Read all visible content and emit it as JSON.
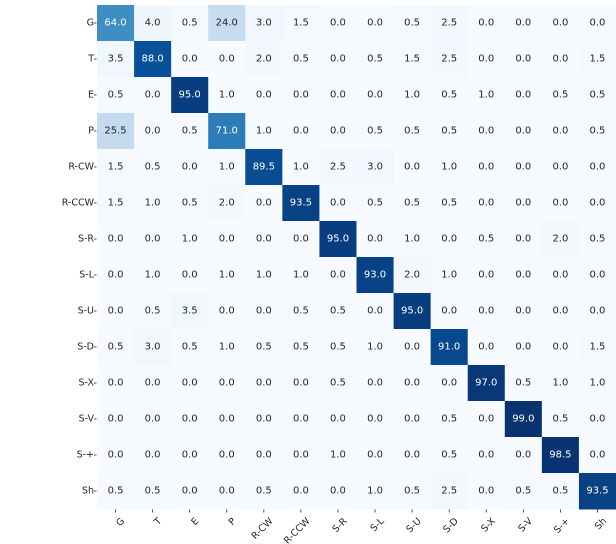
{
  "chart_data": {
    "type": "heatmap",
    "row_labels": [
      "G",
      "T",
      "E",
      "P",
      "R-CW",
      "R-CCW",
      "S-R",
      "S-L",
      "S-U",
      "S-D",
      "S-X",
      "S-V",
      "S-+",
      "Sh"
    ],
    "col_labels": [
      "G",
      "T",
      "E",
      "P",
      "R-CW",
      "R-CCW",
      "S-R",
      "S-L",
      "S-U",
      "S-D",
      "S-X",
      "S-V",
      "S-+",
      "Sh"
    ],
    "values": [
      [
        64.0,
        4.0,
        0.5,
        24.0,
        3.0,
        1.5,
        0.0,
        0.0,
        0.5,
        2.5,
        0.0,
        0.0,
        0.0,
        0.0
      ],
      [
        3.5,
        88.0,
        0.0,
        0.0,
        2.0,
        0.5,
        0.0,
        0.5,
        1.5,
        2.5,
        0.0,
        0.0,
        0.0,
        1.5
      ],
      [
        0.5,
        0.0,
        95.0,
        1.0,
        0.0,
        0.0,
        0.0,
        0.0,
        1.0,
        0.5,
        1.0,
        0.0,
        0.5,
        0.5
      ],
      [
        25.5,
        0.0,
        0.5,
        71.0,
        1.0,
        0.0,
        0.0,
        0.5,
        0.5,
        0.5,
        0.0,
        0.0,
        0.0,
        0.5
      ],
      [
        1.5,
        0.5,
        0.0,
        1.0,
        89.5,
        1.0,
        2.5,
        3.0,
        0.0,
        1.0,
        0.0,
        0.0,
        0.0,
        0.0
      ],
      [
        1.5,
        1.0,
        0.5,
        2.0,
        0.0,
        93.5,
        0.0,
        0.5,
        0.5,
        0.5,
        0.0,
        0.0,
        0.0,
        0.0
      ],
      [
        0.0,
        0.0,
        1.0,
        0.0,
        0.0,
        0.0,
        95.0,
        0.0,
        1.0,
        0.0,
        0.5,
        0.0,
        2.0,
        0.5
      ],
      [
        0.0,
        1.0,
        0.0,
        1.0,
        1.0,
        1.0,
        0.0,
        93.0,
        2.0,
        1.0,
        0.0,
        0.0,
        0.0,
        0.0
      ],
      [
        0.0,
        0.5,
        3.5,
        0.0,
        0.0,
        0.5,
        0.5,
        0.0,
        95.0,
        0.0,
        0.0,
        0.0,
        0.0,
        0.0
      ],
      [
        0.5,
        3.0,
        0.5,
        1.0,
        0.5,
        0.5,
        0.5,
        1.0,
        0.0,
        91.0,
        0.0,
        0.0,
        0.0,
        1.5
      ],
      [
        0.0,
        0.0,
        0.0,
        0.0,
        0.0,
        0.0,
        0.5,
        0.0,
        0.0,
        0.0,
        97.0,
        0.5,
        1.0,
        1.0
      ],
      [
        0.0,
        0.0,
        0.0,
        0.0,
        0.0,
        0.0,
        0.0,
        0.0,
        0.0,
        0.5,
        0.0,
        99.0,
        0.5,
        0.0
      ],
      [
        0.0,
        0.0,
        0.0,
        0.0,
        0.0,
        0.0,
        1.0,
        0.0,
        0.0,
        0.5,
        0.0,
        0.0,
        98.5,
        0.0
      ],
      [
        0.5,
        0.5,
        0.0,
        0.0,
        0.5,
        0.0,
        0.0,
        1.0,
        0.5,
        2.5,
        0.0,
        0.5,
        0.5,
        93.5
      ]
    ],
    "value_range": [
      0,
      100
    ],
    "colormap": "Blues",
    "colors": {
      "low": "#f7fbff",
      "high": "#08306b",
      "text_dark": "#262626",
      "text_light": "#ffffff"
    },
    "title": "",
    "xlabel": "",
    "ylabel": "",
    "grid": false,
    "legend": "none"
  }
}
